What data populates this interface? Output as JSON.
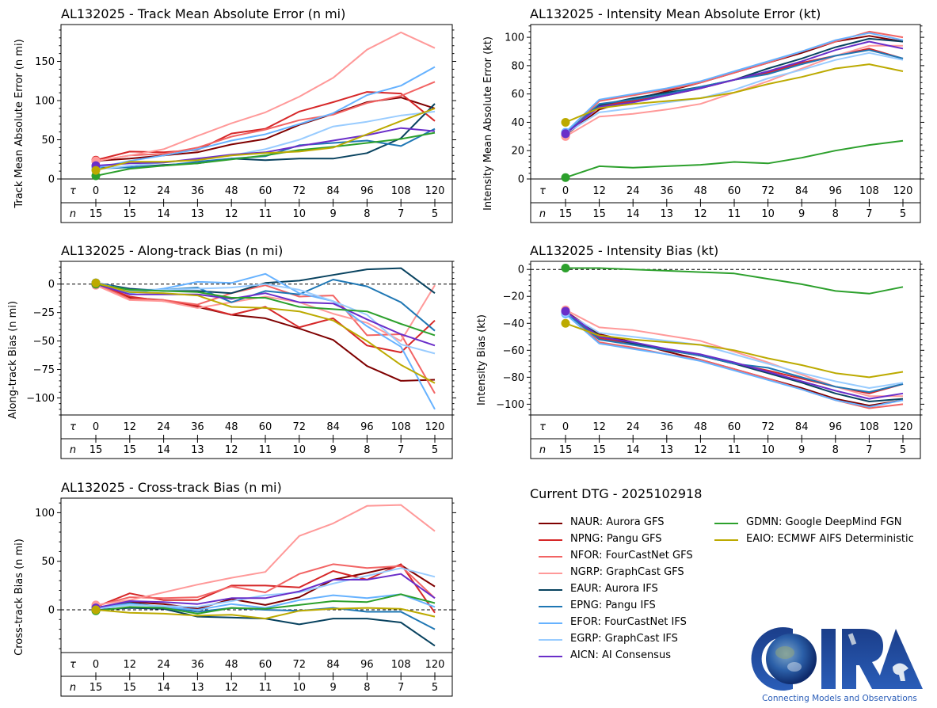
{
  "figure": {
    "storm_id": "AL132025",
    "dtg_label": "Current DTG - 2025102918",
    "logo": {
      "name": "CIRA",
      "tagline": "Connecting Models and Observations"
    }
  },
  "row_labels": {
    "tau": "τ",
    "n": "n"
  },
  "taus": [
    0,
    12,
    24,
    36,
    48,
    60,
    72,
    84,
    96,
    108,
    120
  ],
  "counts": [
    15,
    15,
    14,
    13,
    12,
    11,
    10,
    9,
    8,
    7,
    5
  ],
  "models": [
    {
      "id": "NAUR",
      "label": "NAUR: Aurora GFS",
      "color": "#7f0000"
    },
    {
      "id": "NPNG",
      "label": "NPNG: Pangu GFS",
      "color": "#d62728"
    },
    {
      "id": "NFOR",
      "label": "NFOR: FourCastNet GFS",
      "color": "#f26464"
    },
    {
      "id": "NGRP",
      "label": "NGRP: GraphCast GFS",
      "color": "#ff9999"
    },
    {
      "id": "EAUR",
      "label": "EAUR: Aurora IFS",
      "color": "#08425f"
    },
    {
      "id": "EPNG",
      "label": "EPNG: Pangu IFS",
      "color": "#1f77b4"
    },
    {
      "id": "EFOR",
      "label": "EFOR: FourCastNet IFS",
      "color": "#66b2ff"
    },
    {
      "id": "EGRP",
      "label": "EGRP: GraphCast IFS",
      "color": "#99ccff"
    },
    {
      "id": "AICN",
      "label": "AICN: AI Consensus",
      "color": "#6a2ec9"
    },
    {
      "id": "GDMN",
      "label": "GDMN: Google DeepMind FGN",
      "color": "#2ca02c"
    },
    {
      "id": "EAIO",
      "label": "EAIO: ECMWF AIFS Deterministic",
      "color": "#bcaa00"
    }
  ],
  "chart_data": [
    {
      "id": "track_mae",
      "type": "line",
      "title": "AL132025 - Track Mean Absolute Error (n mi)",
      "xlabel": "τ",
      "ylabel": "Track Mean Absolute Error (n mi)",
      "ylim": [
        0,
        197
      ],
      "yticks": [
        0,
        50,
        100,
        150
      ],
      "zero_line": false,
      "x": [
        0,
        12,
        24,
        36,
        48,
        60,
        72,
        84,
        96,
        108,
        120
      ],
      "series": [
        {
          "name": "NAUR",
          "values": [
            23,
            26,
            30,
            34,
            44,
            51,
            69,
            83,
            98,
            104,
            90
          ]
        },
        {
          "name": "NPNG",
          "values": [
            24,
            35,
            34,
            37,
            58,
            64,
            86,
            98,
            111,
            109,
            74
          ]
        },
        {
          "name": "NFOR",
          "values": [
            23,
            30,
            32,
            40,
            54,
            63,
            75,
            82,
            97,
            106,
            124
          ]
        },
        {
          "name": "NGRP",
          "values": [
            23,
            30,
            38,
            55,
            71,
            85,
            105,
            129,
            165,
            187,
            167
          ]
        },
        {
          "name": "EAUR",
          "values": [
            14,
            15,
            18,
            20,
            26,
            24,
            26,
            26,
            33,
            52,
            96
          ]
        },
        {
          "name": "EPNG",
          "values": [
            13,
            15,
            17,
            22,
            26,
            29,
            43,
            46,
            49,
            42,
            64
          ]
        },
        {
          "name": "EFOR",
          "values": [
            14,
            23,
            30,
            38,
            49,
            57,
            70,
            84,
            107,
            119,
            143
          ]
        },
        {
          "name": "EGRP",
          "values": [
            12,
            17,
            21,
            25,
            30,
            38,
            50,
            67,
            73,
            81,
            86
          ]
        },
        {
          "name": "AICN",
          "values": [
            17,
            20,
            21,
            26,
            31,
            34,
            42,
            49,
            56,
            65,
            61
          ]
        },
        {
          "name": "GDMN",
          "values": [
            4,
            13,
            17,
            20,
            25,
            30,
            37,
            41,
            46,
            51,
            59
          ]
        },
        {
          "name": "EAIO",
          "values": [
            11,
            22,
            22,
            24,
            30,
            33,
            35,
            40,
            57,
            74,
            90
          ]
        }
      ]
    },
    {
      "id": "intensity_mae",
      "type": "line",
      "title": "AL132025 - Intensity Mean Absolute Error (kt)",
      "xlabel": "τ",
      "ylabel": "Intensity Mean Absolute Error (kt)",
      "ylim": [
        0,
        109
      ],
      "yticks": [
        0,
        20,
        40,
        60,
        80,
        100
      ],
      "zero_line": false,
      "x": [
        0,
        12,
        24,
        36,
        48,
        60,
        72,
        84,
        96,
        108,
        120
      ],
      "series": [
        {
          "name": "NAUR",
          "values": [
            31,
            49,
            56,
            62,
            68,
            75,
            82,
            89,
            97,
            101,
            97
          ]
        },
        {
          "name": "NPNG",
          "values": [
            31,
            52,
            55,
            59,
            64,
            70,
            75,
            82,
            87,
            92,
            85
          ]
        },
        {
          "name": "NFOR",
          "values": [
            31,
            55,
            59,
            63,
            68,
            75,
            82,
            90,
            97,
            104,
            100
          ]
        },
        {
          "name": "NGRP",
          "values": [
            30,
            44,
            46,
            49,
            53,
            61,
            69,
            78,
            87,
            94,
            94
          ]
        },
        {
          "name": "EAUR",
          "values": [
            32,
            52,
            57,
            61,
            65,
            70,
            78,
            85,
            93,
            99,
            97
          ]
        },
        {
          "name": "EPNG",
          "values": [
            32,
            53,
            56,
            60,
            65,
            70,
            74,
            81,
            87,
            91,
            85
          ]
        },
        {
          "name": "EFOR",
          "values": [
            33,
            56,
            60,
            64,
            69,
            76,
            83,
            90,
            98,
            103,
            98
          ]
        },
        {
          "name": "EGRP",
          "values": [
            32,
            47,
            50,
            54,
            57,
            63,
            71,
            77,
            84,
            89,
            84
          ]
        },
        {
          "name": "AICN",
          "values": [
            32,
            51,
            54,
            59,
            64,
            70,
            76,
            83,
            91,
            97,
            92
          ]
        },
        {
          "name": "GDMN",
          "values": [
            1,
            9,
            8,
            9,
            10,
            12,
            11,
            15,
            20,
            24,
            27
          ]
        },
        {
          "name": "EAIO",
          "values": [
            40,
            50,
            53,
            55,
            57,
            61,
            67,
            72,
            78,
            81,
            76
          ]
        }
      ]
    },
    {
      "id": "along_track_bias",
      "type": "line",
      "title": "AL132025 - Along-track Bias (n mi)",
      "xlabel": "τ",
      "ylabel": "Along-track Bias (n mi)",
      "ylim": [
        -115,
        20
      ],
      "yticks": [
        0,
        -25,
        -50,
        -75,
        -100
      ],
      "zero_line": true,
      "x": [
        0,
        12,
        24,
        36,
        48,
        60,
        72,
        84,
        96,
        108,
        120
      ],
      "series": [
        {
          "name": "NAUR",
          "values": [
            0,
            -12,
            -14,
            -20,
            -27,
            -30,
            -39,
            -49,
            -72,
            -85,
            -84
          ]
        },
        {
          "name": "NPNG",
          "values": [
            0,
            -11,
            -15,
            -19,
            -27,
            -20,
            -38,
            -30,
            -54,
            -60,
            -32
          ]
        },
        {
          "name": "NFOR",
          "values": [
            0,
            -13,
            -14,
            -18,
            -8,
            -1,
            -11,
            -10,
            -45,
            -44,
            -96
          ]
        },
        {
          "name": "NGRP",
          "values": [
            -1,
            -14,
            -15,
            -21,
            -16,
            -11,
            -16,
            -26,
            -34,
            -50,
            -1
          ]
        },
        {
          "name": "EAUR",
          "values": [
            1,
            -4,
            -6,
            -6,
            -8,
            1,
            3,
            8,
            13,
            14,
            -8
          ]
        },
        {
          "name": "EPNG",
          "values": [
            1,
            -5,
            -5,
            -3,
            -16,
            -6,
            -9,
            4,
            -2,
            -16,
            -41
          ]
        },
        {
          "name": "EFOR",
          "values": [
            1,
            -8,
            -4,
            2,
            1,
            9,
            -8,
            -15,
            -37,
            -55,
            -110
          ]
        },
        {
          "name": "EGRP",
          "values": [
            1,
            -6,
            -5,
            -4,
            -3,
            0,
            -5,
            -15,
            -27,
            -53,
            -61
          ]
        },
        {
          "name": "AICN",
          "values": [
            0,
            -9,
            -9,
            -9,
            -13,
            -8,
            -16,
            -17,
            -31,
            -44,
            -54
          ]
        },
        {
          "name": "GDMN",
          "values": [
            0,
            -5,
            -6,
            -7,
            -12,
            -12,
            -20,
            -22,
            -24,
            -35,
            -45
          ]
        },
        {
          "name": "EAIO",
          "values": [
            1,
            -7,
            -8,
            -10,
            -20,
            -21,
            -24,
            -32,
            -50,
            -71,
            -87
          ]
        }
      ]
    },
    {
      "id": "intensity_bias",
      "type": "line",
      "title": "AL132025 - Intensity Bias (kt)",
      "xlabel": "τ",
      "ylabel": "Intensity Bias (kt)",
      "ylim": [
        -108,
        6
      ],
      "yticks": [
        0,
        -20,
        -40,
        -60,
        -80,
        -100
      ],
      "zero_line": true,
      "x": [
        0,
        12,
        24,
        36,
        48,
        60,
        72,
        84,
        96,
        108,
        120
      ],
      "series": [
        {
          "name": "NAUR",
          "values": [
            -31,
            -48,
            -54,
            -61,
            -67,
            -74,
            -81,
            -88,
            -96,
            -101,
            -97
          ]
        },
        {
          "name": "NPNG",
          "values": [
            -31,
            -51,
            -55,
            -60,
            -64,
            -70,
            -75,
            -81,
            -87,
            -92,
            -85
          ]
        },
        {
          "name": "NFOR",
          "values": [
            -31,
            -54,
            -58,
            -63,
            -67,
            -74,
            -81,
            -89,
            -97,
            -103,
            -100
          ]
        },
        {
          "name": "NGRP",
          "values": [
            -30,
            -43,
            -45,
            -49,
            -53,
            -61,
            -69,
            -78,
            -87,
            -94,
            -94
          ]
        },
        {
          "name": "EAUR",
          "values": [
            -32,
            -49,
            -55,
            -59,
            -64,
            -70,
            -77,
            -84,
            -92,
            -98,
            -96
          ]
        },
        {
          "name": "EPNG",
          "values": [
            -32,
            -52,
            -56,
            -60,
            -64,
            -70,
            -73,
            -80,
            -87,
            -91,
            -85
          ]
        },
        {
          "name": "EFOR",
          "values": [
            -33,
            -55,
            -59,
            -63,
            -68,
            -75,
            -82,
            -89,
            -97,
            -102,
            -97
          ]
        },
        {
          "name": "EGRP",
          "values": [
            -32,
            -47,
            -50,
            -53,
            -56,
            -63,
            -70,
            -77,
            -83,
            -88,
            -84
          ]
        },
        {
          "name": "AICN",
          "values": [
            -31,
            -50,
            -54,
            -59,
            -63,
            -69,
            -76,
            -83,
            -90,
            -96,
            -92
          ]
        },
        {
          "name": "GDMN",
          "values": [
            1,
            1,
            0,
            -1,
            -2,
            -3,
            -7,
            -11,
            -16,
            -18,
            -13
          ]
        },
        {
          "name": "EAIO",
          "values": [
            -40,
            -49,
            -52,
            -54,
            -56,
            -60,
            -66,
            -71,
            -77,
            -80,
            -76
          ]
        }
      ]
    },
    {
      "id": "cross_track_bias",
      "type": "line",
      "title": "AL132025 - Cross-track Bias (n mi)",
      "xlabel": "τ",
      "ylabel": "Cross-track Bias (n mi)",
      "ylim": [
        -44,
        115
      ],
      "yticks": [
        0,
        50,
        100
      ],
      "zero_line": true,
      "x": [
        0,
        12,
        24,
        36,
        48,
        60,
        72,
        84,
        96,
        108,
        120
      ],
      "series": [
        {
          "name": "NAUR",
          "values": [
            2,
            8,
            6,
            1,
            11,
            5,
            13,
            31,
            38,
            46,
            24
          ]
        },
        {
          "name": "NPNG",
          "values": [
            3,
            17,
            10,
            10,
            25,
            25,
            23,
            40,
            31,
            47,
            -3
          ]
        },
        {
          "name": "NFOR",
          "values": [
            4,
            13,
            12,
            13,
            24,
            18,
            37,
            47,
            43,
            45,
            12
          ]
        },
        {
          "name": "NGRP",
          "values": [
            5,
            10,
            18,
            26,
            33,
            39,
            76,
            89,
            107,
            108,
            81
          ]
        },
        {
          "name": "EAUR",
          "values": [
            0,
            2,
            1,
            -7,
            -8,
            -9,
            -15,
            -9,
            -9,
            -13,
            -37
          ]
        },
        {
          "name": "EPNG",
          "values": [
            1,
            7,
            3,
            -2,
            2,
            0,
            -1,
            2,
            -2,
            -2,
            -20
          ]
        },
        {
          "name": "EFOR",
          "values": [
            2,
            6,
            3,
            0,
            6,
            2,
            10,
            15,
            12,
            16,
            3
          ]
        },
        {
          "name": "EGRP",
          "values": [
            1,
            5,
            4,
            3,
            9,
            15,
            18,
            27,
            35,
            43,
            34
          ]
        },
        {
          "name": "AICN",
          "values": [
            2,
            9,
            8,
            6,
            12,
            12,
            19,
            31,
            31,
            37,
            12
          ]
        },
        {
          "name": "GDMN",
          "values": [
            -1,
            3,
            2,
            -4,
            2,
            1,
            5,
            9,
            8,
            16,
            7
          ]
        },
        {
          "name": "EAIO",
          "values": [
            0,
            -3,
            -4,
            -6,
            -5,
            -9,
            -1,
            1,
            2,
            1,
            -7
          ]
        }
      ]
    }
  ]
}
